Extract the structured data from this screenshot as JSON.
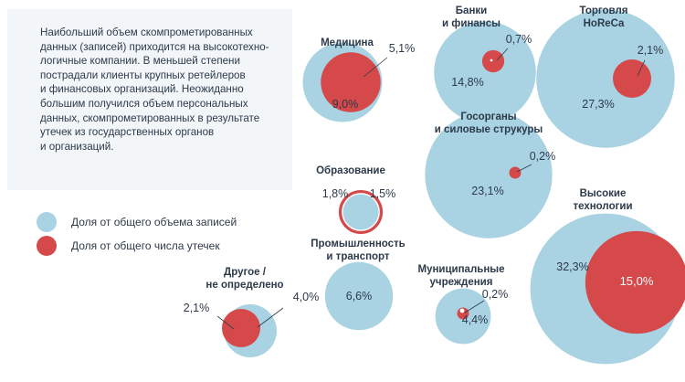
{
  "note": {
    "lines": [
      "Наибольший объем скомпрометированных",
      "данных (записей) приходится на высокотехно-",
      "логичные компании. В меньшей степени",
      "пострадали клиенты крупных ретейлеров",
      "и финансовых организаций. Неожиданно",
      "большим получился объем персональных",
      "данных, скомпрометированных в результате",
      "утечек из государственных органов",
      "и организаций."
    ]
  },
  "colors": {
    "records": "#a9d3e3",
    "leaks": "#d5494b"
  },
  "chart_data": {
    "type": "bubble",
    "legend": {
      "records": "Доля от общего объема записей",
      "leaks": "Доля от общего числа утечек"
    },
    "unit": "%",
    "categories": [
      {
        "name": [
          "Медицина"
        ],
        "records": 9.0,
        "leaks": 5.1,
        "records_label": "9,0%",
        "leaks_label": "5,1%"
      },
      {
        "name": [
          "Банки",
          "и финансы"
        ],
        "records": 14.8,
        "leaks": 0.7,
        "records_label": "14,8%",
        "leaks_label": "0,7%"
      },
      {
        "name": [
          "Торговля",
          "HoReCa"
        ],
        "records": 27.3,
        "leaks": 2.1,
        "records_label": "27,3%",
        "leaks_label": "2,1%"
      },
      {
        "name": [
          "Госорганы",
          "и силовые струкуры"
        ],
        "records": 23.1,
        "leaks": 0.2,
        "records_label": "23,1%",
        "leaks_label": "0,2%"
      },
      {
        "name": [
          "Образование"
        ],
        "records": 1.8,
        "leaks": 1.5,
        "records_label": "1,8%",
        "leaks_label": "1,5%"
      },
      {
        "name": [
          "Высокие",
          "технологии"
        ],
        "records": 32.3,
        "leaks": 15.0,
        "records_label": "32,3%",
        "leaks_label": "15,0%"
      },
      {
        "name": [
          "Промышленность",
          "и транспорт"
        ],
        "records": 6.6,
        "leaks": null,
        "records_label": "6,6%",
        "leaks_label": ""
      },
      {
        "name": [
          "Муниципальные",
          "учреждения"
        ],
        "records": 4.4,
        "leaks": 0.2,
        "records_label": "4,4%",
        "leaks_label": "0,2%"
      },
      {
        "name": [
          "Другое /",
          "не определено"
        ],
        "records": 4.0,
        "leaks": 2.1,
        "records_label": "4,0%",
        "leaks_label": "2,1%"
      }
    ]
  }
}
